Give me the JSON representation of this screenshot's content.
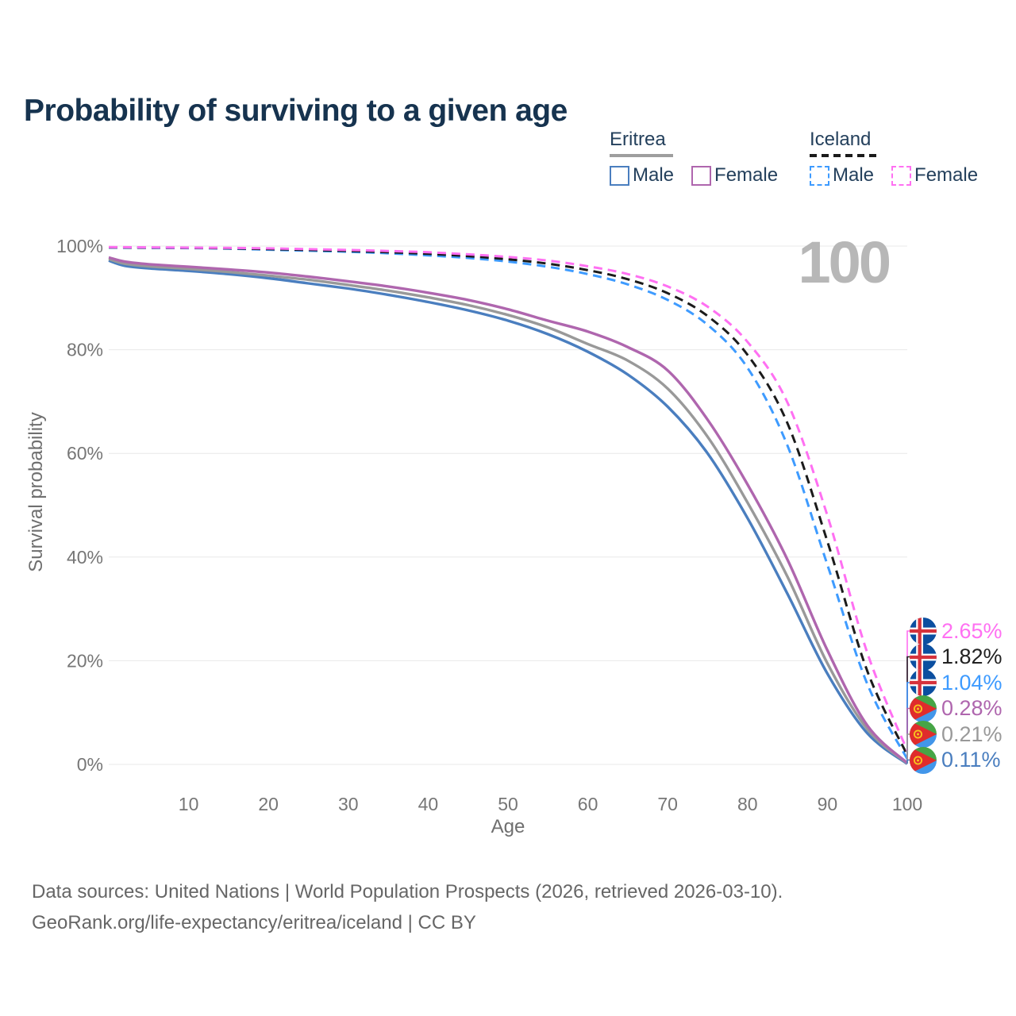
{
  "header": {
    "title": "Probability of surviving to a given age"
  },
  "legend": {
    "groups": [
      {
        "country": "Eritrea",
        "line_style": "solid",
        "underline_color": "#9e9e9e",
        "items": [
          {
            "label": "Male",
            "color": "#4a7ebf",
            "style": "solid"
          },
          {
            "label": "Female",
            "color": "#af66ae",
            "style": "solid"
          }
        ]
      },
      {
        "country": "Iceland",
        "line_style": "dashed",
        "underline_color": "#1b1b1b",
        "items": [
          {
            "label": "Male",
            "color": "#3e9bff",
            "style": "dashed"
          },
          {
            "label": "Female",
            "color": "#ff70f2",
            "style": "dashed"
          }
        ]
      }
    ]
  },
  "chart_data": {
    "type": "line",
    "title": "Probability of surviving to a given age",
    "xlabel": "Age",
    "ylabel": "Survival probability",
    "xlim": [
      0,
      100
    ],
    "ylim": [
      0,
      100
    ],
    "x_ticks": [
      10,
      20,
      30,
      40,
      50,
      60,
      70,
      80,
      90,
      100
    ],
    "y_ticks": [
      0,
      20,
      40,
      60,
      80,
      100
    ],
    "y_tick_suffix": "%",
    "grid": "horizontal-only",
    "legend_position": "top-right",
    "watermark": "100",
    "ages": [
      0,
      2,
      5,
      10,
      15,
      20,
      25,
      30,
      35,
      40,
      45,
      50,
      55,
      60,
      65,
      70,
      75,
      80,
      85,
      90,
      95,
      100
    ],
    "series": [
      {
        "name": "Eritrea Male",
        "country": "Eritrea",
        "sex": "Male",
        "style": "solid",
        "color": "#4a7ebf",
        "values": [
          97.2,
          96.2,
          95.7,
          95.2,
          94.6,
          93.8,
          92.8,
          91.8,
          90.6,
          89.2,
          87.6,
          85.6,
          83.0,
          79.6,
          75.2,
          69.0,
          60.0,
          47.5,
          32.9,
          17.5,
          6.0,
          0.11
        ]
      },
      {
        "name": "Eritrea Both sexes",
        "country": "Eritrea",
        "sex": "Both",
        "style": "solid",
        "color": "#999999",
        "values": [
          97.5,
          96.6,
          96.1,
          95.6,
          95.0,
          94.3,
          93.5,
          92.5,
          91.4,
          90.1,
          88.6,
          86.7,
          84.3,
          81.1,
          77.9,
          72.5,
          63.2,
          50.5,
          36.2,
          19.5,
          6.8,
          0.21
        ]
      },
      {
        "name": "Eritrea Female",
        "country": "Eritrea",
        "sex": "Female",
        "style": "solid",
        "color": "#af66ae",
        "values": [
          97.8,
          97.0,
          96.5,
          96.0,
          95.5,
          94.9,
          94.1,
          93.2,
          92.2,
          91.0,
          89.6,
          87.8,
          85.6,
          83.5,
          80.5,
          76.0,
          66.5,
          54.0,
          39.5,
          22.0,
          7.5,
          0.28
        ]
      },
      {
        "name": "Iceland Male",
        "country": "Iceland",
        "sex": "Male",
        "style": "dashed",
        "color": "#3e9bff",
        "values": [
          99.7,
          99.68,
          99.65,
          99.6,
          99.5,
          99.3,
          99.1,
          98.9,
          98.6,
          98.2,
          97.7,
          97.0,
          96.0,
          94.6,
          92.6,
          89.6,
          84.8,
          76.5,
          61.5,
          38.5,
          15.5,
          1.04
        ]
      },
      {
        "name": "Iceland Both sexes",
        "country": "Iceland",
        "sex": "Both",
        "style": "dashed",
        "color": "#1b1b1b",
        "values": [
          99.75,
          99.72,
          99.7,
          99.65,
          99.57,
          99.42,
          99.25,
          99.07,
          98.82,
          98.5,
          98.05,
          97.45,
          96.6,
          95.35,
          93.6,
          90.9,
          86.5,
          79.0,
          65.8,
          43.0,
          18.0,
          1.82
        ]
      },
      {
        "name": "Iceland Female",
        "country": "Iceland",
        "sex": "Female",
        "style": "dashed",
        "color": "#ff70f2",
        "values": [
          99.8,
          99.78,
          99.75,
          99.7,
          99.65,
          99.55,
          99.4,
          99.25,
          99.05,
          98.8,
          98.4,
          97.9,
          97.2,
          96.1,
          94.6,
          92.2,
          88.3,
          81.5,
          69.8,
          48.0,
          21.5,
          2.65
        ]
      }
    ],
    "end_labels": [
      {
        "value": "2.65%",
        "numeric": 2.65,
        "color": "#ff70f2",
        "flag": "iceland",
        "series": "Iceland Female"
      },
      {
        "value": "1.82%",
        "numeric": 1.82,
        "color": "#222222",
        "flag": "iceland",
        "series": "Iceland Both sexes"
      },
      {
        "value": "1.04%",
        "numeric": 1.04,
        "color": "#3e9bff",
        "flag": "iceland",
        "series": "Iceland Male"
      },
      {
        "value": "0.28%",
        "numeric": 0.28,
        "color": "#af66ae",
        "flag": "eritrea",
        "series": "Eritrea Female"
      },
      {
        "value": "0.21%",
        "numeric": 0.21,
        "color": "#999999",
        "flag": "eritrea",
        "series": "Eritrea Both sexes"
      },
      {
        "value": "0.11%",
        "numeric": 0.11,
        "color": "#4a7ebf",
        "flag": "eritrea",
        "series": "Eritrea Male"
      }
    ]
  },
  "footer": {
    "line1": "Data sources: United Nations | World Population Prospects (2026, retrieved 2026-03-10).",
    "line2": "GeoRank.org/life-expectancy/eritrea/iceland | CC BY"
  }
}
